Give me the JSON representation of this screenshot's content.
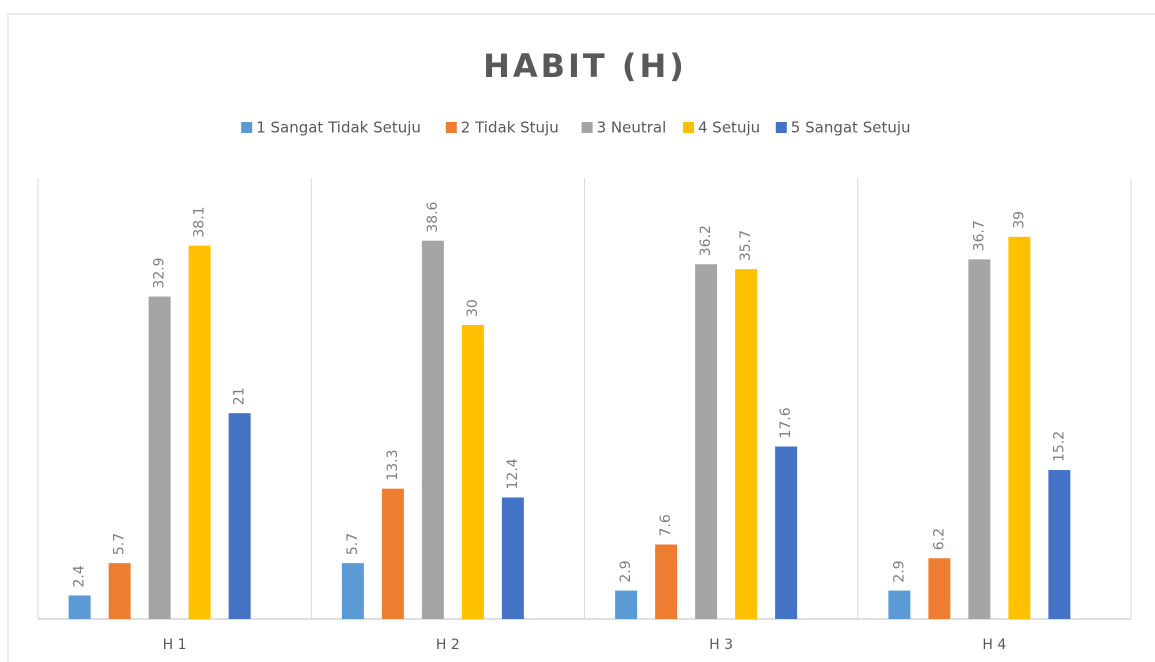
{
  "chart_data": {
    "type": "bar",
    "title": "HABIT (H)",
    "categories": [
      "H 1",
      "H 2",
      "H 3",
      "H 4"
    ],
    "series": [
      {
        "name": "1 Sangat Tidak Setuju",
        "color": "#5b9bd5",
        "values": [
          2.4,
          5.7,
          2.9,
          2.9
        ]
      },
      {
        "name": "2 Tidak Stuju",
        "color": "#ed7d31",
        "values": [
          5.7,
          13.3,
          7.6,
          6.2
        ]
      },
      {
        "name": "3 Neutral",
        "color": "#a5a5a5",
        "values": [
          32.9,
          38.6,
          36.2,
          36.7
        ]
      },
      {
        "name": "4 Setuju",
        "color": "#ffc000",
        "values": [
          38.1,
          30,
          35.7,
          39
        ]
      },
      {
        "name": "5 Sangat Setuju",
        "color": "#4472c4",
        "values": [
          21,
          12.4,
          17.6,
          15.2
        ]
      }
    ],
    "ylim": [
      0,
      45
    ],
    "legend": "top"
  }
}
